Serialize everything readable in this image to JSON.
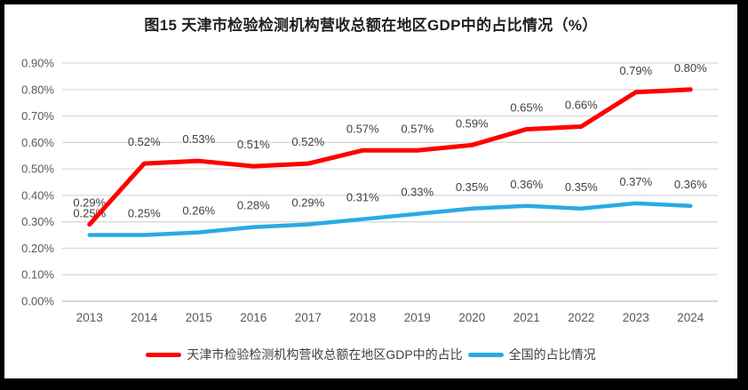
{
  "window": {
    "background": "#ffffff",
    "frame_color": "#000000"
  },
  "title": "图15 天津市检验检测机构营收总额在地区GDP中的占比情况（%）",
  "chart_data": {
    "type": "line",
    "title": "图15 天津市检验检测机构营收总额在地区GDP中的占比情况（%）",
    "categories": [
      "2013",
      "2014",
      "2015",
      "2016",
      "2017",
      "2018",
      "2019",
      "2020",
      "2021",
      "2022",
      "2023",
      "2024"
    ],
    "series": [
      {
        "key": "tianjin",
        "name": "天津市检验检测机构营收总额在地区GDP中的占比",
        "color": "#FF0000",
        "values_pct": [
          0.29,
          0.52,
          0.53,
          0.51,
          0.52,
          0.57,
          0.57,
          0.59,
          0.65,
          0.66,
          0.79,
          0.8
        ],
        "labels": [
          "0.29%",
          "0.52%",
          "0.53%",
          "0.51%",
          "0.52%",
          "0.57%",
          "0.57%",
          "0.59%",
          "0.65%",
          "0.66%",
          "0.79%",
          "0.80%"
        ]
      },
      {
        "key": "national",
        "name": "全国的占比情况",
        "color": "#29ABE2",
        "values_pct": [
          0.25,
          0.25,
          0.26,
          0.28,
          0.29,
          0.31,
          0.33,
          0.35,
          0.36,
          0.35,
          0.37,
          0.36
        ],
        "labels": [
          "0.25%",
          "0.25%",
          "0.26%",
          "0.28%",
          "0.29%",
          "0.31%",
          "0.33%",
          "0.35%",
          "0.36%",
          "0.35%",
          "0.37%",
          "0.36%"
        ]
      }
    ],
    "y_axis": {
      "min": 0,
      "max": 0.9,
      "step": 0.1,
      "tick_labels": [
        "0.00%",
        "0.10%",
        "0.20%",
        "0.30%",
        "0.40%",
        "0.50%",
        "0.60%",
        "0.70%",
        "0.80%",
        "0.90%"
      ]
    },
    "grid": true,
    "data_labels": true,
    "legend_position": "bottom",
    "colors": {
      "gridline": "#D9D9D9",
      "axis_line": "#BFBFBF",
      "tick_text": "#595959",
      "label_text": "#404040"
    }
  }
}
